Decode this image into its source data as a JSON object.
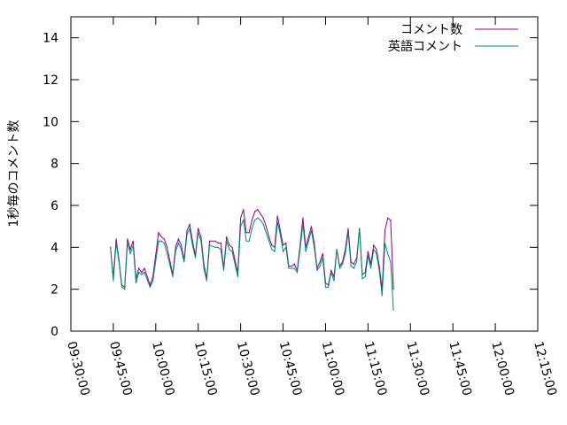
{
  "chart_data": {
    "type": "line",
    "title": "",
    "xlabel": "",
    "ylabel": "1秒毎のコメント数",
    "ylim": [
      0,
      15
    ],
    "xlim": [
      "09:30:00",
      "12:15:00"
    ],
    "yticks": [
      "0",
      "2",
      "4",
      "6",
      "8",
      "10",
      "12",
      "14"
    ],
    "xticks": [
      "09:30:00",
      "09:45:00",
      "10:00:00",
      "10:15:00",
      "10:30:00",
      "10:45:00",
      "11:00:00",
      "11:15:00",
      "11:30:00",
      "11:45:00",
      "12:00:00",
      "12:15:00"
    ],
    "grid": false,
    "legend_position": "top-right",
    "series": [
      {
        "name": "コメント数",
        "color": "#8b008b",
        "points": [
          [
            "09:44:00",
            4.0
          ],
          [
            "09:45:00",
            2.6
          ],
          [
            "09:46:00",
            4.4
          ],
          [
            "09:47:00",
            3.4
          ],
          [
            "09:48:00",
            2.2
          ],
          [
            "09:49:00",
            2.1
          ],
          [
            "09:50:00",
            4.4
          ],
          [
            "09:51:00",
            3.9
          ],
          [
            "09:52:00",
            4.3
          ],
          [
            "09:53:00",
            2.5
          ],
          [
            "09:54:00",
            3.0
          ],
          [
            "09:55:00",
            2.8
          ],
          [
            "09:56:00",
            3.0
          ],
          [
            "09:58:00",
            2.2
          ],
          [
            "09:59:00",
            2.6
          ],
          [
            "10:01:00",
            4.7
          ],
          [
            "10:02:00",
            4.5
          ],
          [
            "10:03:00",
            4.4
          ],
          [
            "10:04:00",
            4.0
          ],
          [
            "10:06:00",
            2.7
          ],
          [
            "10:07:00",
            4.0
          ],
          [
            "10:08:00",
            4.4
          ],
          [
            "10:09:00",
            4.1
          ],
          [
            "10:10:00",
            3.4
          ],
          [
            "10:11:00",
            4.8
          ],
          [
            "10:12:00",
            5.1
          ],
          [
            "10:13:00",
            4.3
          ],
          [
            "10:14:00",
            3.6
          ],
          [
            "10:15:00",
            4.9
          ],
          [
            "10:16:00",
            4.5
          ],
          [
            "10:17:00",
            3.2
          ],
          [
            "10:18:00",
            2.5
          ],
          [
            "10:19:00",
            4.3
          ],
          [
            "10:21:00",
            4.3
          ],
          [
            "10:22:00",
            4.2
          ],
          [
            "10:23:00",
            4.2
          ],
          [
            "10:24:00",
            3.0
          ],
          [
            "10:25:00",
            4.5
          ],
          [
            "10:26:00",
            4.1
          ],
          [
            "10:27:00",
            4.0
          ],
          [
            "10:28:00",
            3.4
          ],
          [
            "10:29:00",
            2.8
          ],
          [
            "10:30:00",
            5.4
          ],
          [
            "10:31:00",
            5.8
          ],
          [
            "10:32:00",
            4.7
          ],
          [
            "10:33:00",
            4.7
          ],
          [
            "10:34:00",
            5.3
          ],
          [
            "10:35:00",
            5.7
          ],
          [
            "10:36:00",
            5.8
          ],
          [
            "10:37:00",
            5.6
          ],
          [
            "10:38:00",
            5.4
          ],
          [
            "10:39:00",
            5.0
          ],
          [
            "10:40:00",
            4.5
          ],
          [
            "10:41:00",
            4.1
          ],
          [
            "10:42:00",
            4.0
          ],
          [
            "10:43:00",
            5.5
          ],
          [
            "10:44:00",
            4.8
          ],
          [
            "10:45:00",
            4.1
          ],
          [
            "10:46:00",
            4.2
          ],
          [
            "10:47:00",
            3.1
          ],
          [
            "10:48:00",
            3.1
          ],
          [
            "10:49:00",
            3.2
          ],
          [
            "10:50:00",
            2.9
          ],
          [
            "10:51:00",
            4.1
          ],
          [
            "10:52:00",
            5.4
          ],
          [
            "10:53:00",
            4.0
          ],
          [
            "10:54:00",
            4.5
          ],
          [
            "10:55:00",
            5.0
          ],
          [
            "10:56:00",
            4.2
          ],
          [
            "10:57:00",
            3.0
          ],
          [
            "10:58:00",
            3.3
          ],
          [
            "10:59:00",
            3.7
          ],
          [
            "11:00:00",
            2.3
          ],
          [
            "11:01:00",
            2.2
          ],
          [
            "11:02:00",
            2.9
          ],
          [
            "11:03:00",
            2.6
          ],
          [
            "11:04:00",
            3.9
          ],
          [
            "11:05:00",
            3.1
          ],
          [
            "11:06:00",
            3.3
          ],
          [
            "11:07:00",
            3.9
          ],
          [
            "11:08:00",
            4.9
          ],
          [
            "11:09:00",
            3.3
          ],
          [
            "11:10:00",
            3.2
          ],
          [
            "11:11:00",
            3.5
          ],
          [
            "11:12:00",
            4.9
          ],
          [
            "11:13:00",
            2.7
          ],
          [
            "11:14:00",
            2.8
          ],
          [
            "11:15:00",
            3.8
          ],
          [
            "11:16:00",
            3.2
          ],
          [
            "11:17:00",
            4.1
          ],
          [
            "11:18:00",
            3.9
          ],
          [
            "11:19:00",
            3.1
          ],
          [
            "11:20:00",
            2.0
          ],
          [
            "11:21:00",
            4.8
          ],
          [
            "11:22:00",
            5.4
          ],
          [
            "11:23:00",
            5.3
          ],
          [
            "11:24:00",
            2.0
          ]
        ]
      },
      {
        "name": "英語コメント",
        "color": "#008b70",
        "points": [
          [
            "09:44:00",
            4.0
          ],
          [
            "09:45:00",
            2.4
          ],
          [
            "09:46:00",
            4.2
          ],
          [
            "09:47:00",
            3.3
          ],
          [
            "09:48:00",
            2.1
          ],
          [
            "09:49:00",
            2.0
          ],
          [
            "09:50:00",
            4.2
          ],
          [
            "09:51:00",
            3.7
          ],
          [
            "09:52:00",
            4.1
          ],
          [
            "09:53:00",
            2.3
          ],
          [
            "09:54:00",
            2.8
          ],
          [
            "09:55:00",
            2.7
          ],
          [
            "09:56:00",
            2.8
          ],
          [
            "09:58:00",
            2.1
          ],
          [
            "09:59:00",
            2.4
          ],
          [
            "10:01:00",
            4.3
          ],
          [
            "10:02:00",
            4.3
          ],
          [
            "10:03:00",
            4.2
          ],
          [
            "10:04:00",
            3.7
          ],
          [
            "10:06:00",
            2.6
          ],
          [
            "10:07:00",
            3.8
          ],
          [
            "10:08:00",
            4.2
          ],
          [
            "10:09:00",
            3.9
          ],
          [
            "10:10:00",
            3.3
          ],
          [
            "10:11:00",
            4.6
          ],
          [
            "10:12:00",
            4.9
          ],
          [
            "10:13:00",
            4.1
          ],
          [
            "10:14:00",
            3.5
          ],
          [
            "10:15:00",
            4.7
          ],
          [
            "10:16:00",
            4.3
          ],
          [
            "10:17:00",
            3.0
          ],
          [
            "10:18:00",
            2.4
          ],
          [
            "10:19:00",
            4.1
          ],
          [
            "10:21:00",
            4.0
          ],
          [
            "10:22:00",
            4.0
          ],
          [
            "10:23:00",
            3.9
          ],
          [
            "10:24:00",
            2.9
          ],
          [
            "10:25:00",
            4.3
          ],
          [
            "10:26:00",
            3.9
          ],
          [
            "10:27:00",
            3.8
          ],
          [
            "10:28:00",
            3.2
          ],
          [
            "10:29:00",
            2.6
          ],
          [
            "10:30:00",
            5.0
          ],
          [
            "10:31:00",
            5.3
          ],
          [
            "10:32:00",
            4.3
          ],
          [
            "10:33:00",
            4.3
          ],
          [
            "10:34:00",
            4.9
          ],
          [
            "10:35:00",
            5.3
          ],
          [
            "10:36:00",
            5.4
          ],
          [
            "10:37:00",
            5.3
          ],
          [
            "10:38:00",
            5.1
          ],
          [
            "10:39:00",
            4.7
          ],
          [
            "10:40:00",
            4.3
          ],
          [
            "10:41:00",
            3.9
          ],
          [
            "10:42:00",
            3.8
          ],
          [
            "10:43:00",
            5.2
          ],
          [
            "10:44:00",
            4.6
          ],
          [
            "10:45:00",
            3.8
          ],
          [
            "10:46:00",
            4.0
          ],
          [
            "10:47:00",
            3.0
          ],
          [
            "10:48:00",
            3.0
          ],
          [
            "10:49:00",
            3.0
          ],
          [
            "10:50:00",
            2.8
          ],
          [
            "10:51:00",
            3.9
          ],
          [
            "10:52:00",
            5.1
          ],
          [
            "10:53:00",
            3.8
          ],
          [
            "10:54:00",
            4.3
          ],
          [
            "10:55:00",
            4.8
          ],
          [
            "10:56:00",
            4.0
          ],
          [
            "10:57:00",
            2.9
          ],
          [
            "10:58:00",
            3.1
          ],
          [
            "10:59:00",
            3.5
          ],
          [
            "11:00:00",
            2.1
          ],
          [
            "11:01:00",
            2.1
          ],
          [
            "11:02:00",
            2.8
          ],
          [
            "11:03:00",
            2.4
          ],
          [
            "11:04:00",
            3.9
          ],
          [
            "11:05:00",
            3.0
          ],
          [
            "11:06:00",
            3.2
          ],
          [
            "11:07:00",
            3.7
          ],
          [
            "11:08:00",
            4.7
          ],
          [
            "11:09:00",
            3.1
          ],
          [
            "11:10:00",
            3.0
          ],
          [
            "11:11:00",
            3.3
          ],
          [
            "11:12:00",
            4.9
          ],
          [
            "11:13:00",
            2.5
          ],
          [
            "11:14:00",
            2.6
          ],
          [
            "11:15:00",
            3.6
          ],
          [
            "11:16:00",
            3.0
          ],
          [
            "11:17:00",
            3.9
          ],
          [
            "11:18:00",
            3.7
          ],
          [
            "11:19:00",
            2.9
          ],
          [
            "11:20:00",
            1.7
          ],
          [
            "11:21:00",
            4.2
          ],
          [
            "11:22:00",
            3.7
          ],
          [
            "11:23:00",
            3.3
          ],
          [
            "11:24:00",
            1.0
          ]
        ]
      }
    ]
  }
}
